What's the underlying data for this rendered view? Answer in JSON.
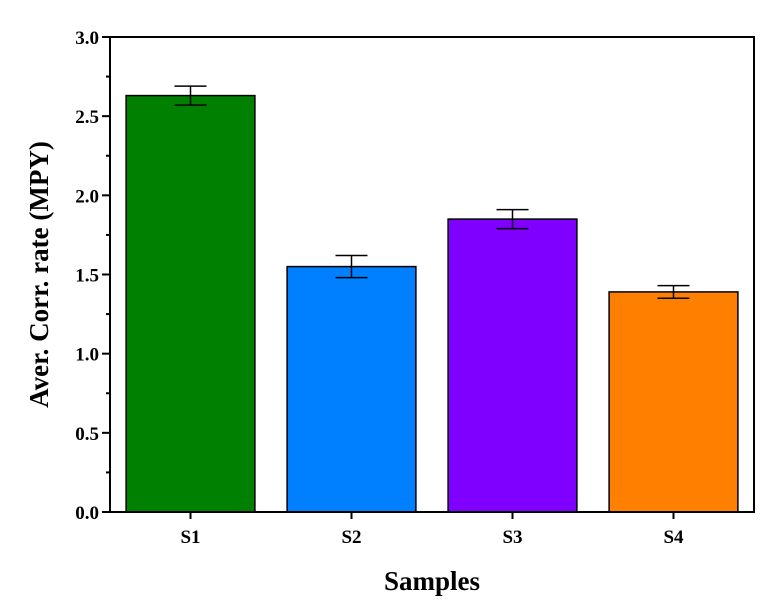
{
  "chart_data": {
    "type": "bar",
    "title": "",
    "xlabel": "Samples",
    "ylabel": "Aver. Corr. rate (MPY)",
    "categories": [
      "S1",
      "S2",
      "S3",
      "S4"
    ],
    "values": [
      2.63,
      1.55,
      1.85,
      1.39
    ],
    "errors": [
      0.06,
      0.07,
      0.06,
      0.04
    ],
    "colors": [
      "#008000",
      "#0080ff",
      "#8000ff",
      "#ff8000"
    ],
    "ylim": [
      0,
      3.0
    ],
    "yticks": [
      "0.0",
      "0.5",
      "1.0",
      "1.5",
      "2.0",
      "2.5",
      "3.0"
    ],
    "grid": false,
    "legend": "none"
  }
}
